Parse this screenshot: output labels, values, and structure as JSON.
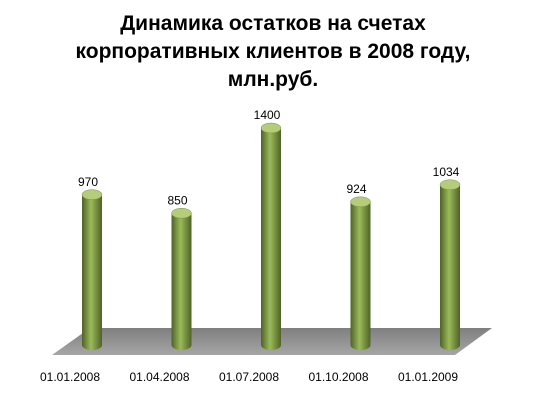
{
  "chart_data": {
    "type": "bar3d",
    "title": "Динамика  остатков на счетах корпоративных клиентов в 2008 году, млн.руб.",
    "categories": [
      "01.01.2008",
      "01.04.2008",
      "01.07.2008",
      "01.10.2008",
      "01.01.2009"
    ],
    "values": [
      970,
      850,
      1400,
      924,
      1034
    ],
    "color": "#77933c"
  }
}
